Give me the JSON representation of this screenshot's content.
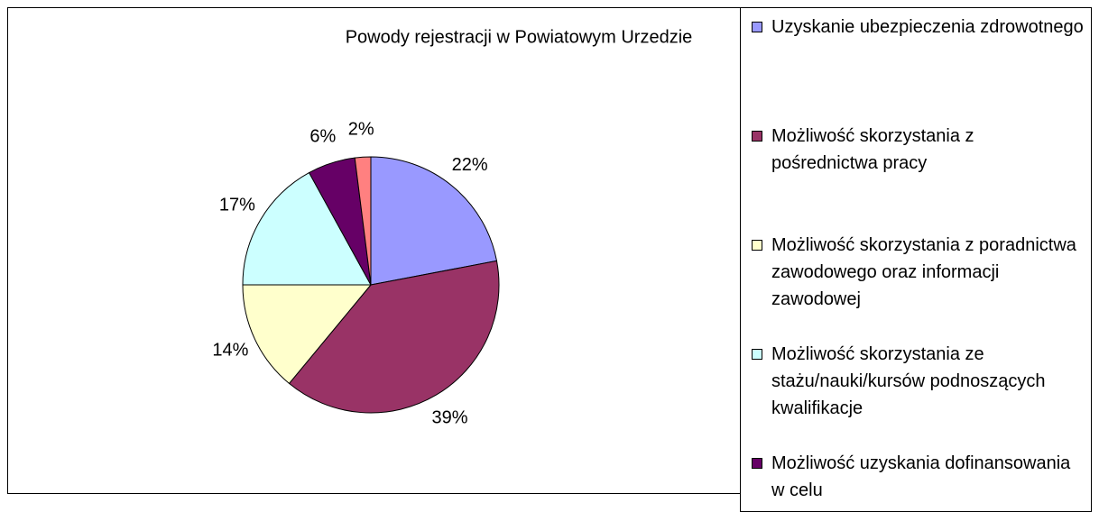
{
  "chart_data": {
    "type": "pie",
    "title": "Powody rejestracji w Powiatowym Urzedzie",
    "categories": [
      "Uzyskanie ubezpieczenia zdrowotnego",
      "Możliwość skorzystania z pośrednictwa pracy",
      "Możliwość skorzystania z poradnictwa zawodowego oraz informacji zawodowej",
      "Możliwość skorzystania ze stażu/nauki/kursów podnoszących kwalifikacje",
      "Możliwość uzyskania dofinansowania w celu",
      null
    ],
    "values": [
      22,
      39,
      14,
      17,
      6,
      2
    ],
    "value_labels": [
      "22%",
      "39%",
      "14%",
      "17%",
      "6%",
      "2%"
    ],
    "colors": [
      "#9999ff",
      "#993366",
      "#ffffcc",
      "#ccffff",
      "#660066",
      "#ff8080"
    ]
  }
}
